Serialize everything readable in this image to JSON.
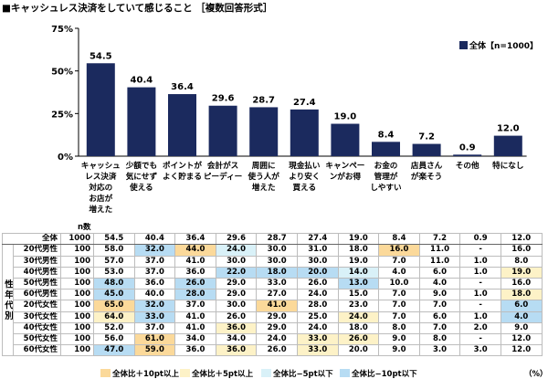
{
  "title": "■キャッシュレス決済をしていて感じること ［複数回答形式］",
  "colors": {
    "bar": "#1b2a5e",
    "up10": "#fbd99a",
    "up5": "#fdf2c7",
    "down5": "#d9f1f8",
    "down10": "#b7dcf3"
  },
  "chart_data": {
    "type": "bar",
    "categories": [
      [
        "キャッシュ",
        "レス決済",
        "対応の",
        "お店が",
        "増えた"
      ],
      [
        "少額でも",
        "気にせず",
        "使える"
      ],
      [
        "ポイントが",
        "よく貯まる"
      ],
      [
        "会計がス",
        "ピーディー"
      ],
      [
        "周囲に",
        "使う人が",
        "増えた"
      ],
      [
        "現金払い",
        "より安く",
        "買える"
      ],
      [
        "キャンペー",
        "ンがお得"
      ],
      [
        "お金の",
        "管理が",
        "しやすい"
      ],
      [
        "店員さん",
        "が楽そう"
      ],
      [
        "その他"
      ],
      [
        "特になし"
      ]
    ],
    "series": [
      {
        "name": "全体【n=1000】",
        "values": [
          54.5,
          40.4,
          36.4,
          29.6,
          28.7,
          27.4,
          19.0,
          8.4,
          7.2,
          0.9,
          12.0
        ]
      }
    ],
    "value_labels": [
      "54.5",
      "40.4",
      "36.4",
      "29.6",
      "28.7",
      "27.4",
      "19.0",
      "8.4",
      "7.2",
      "0.9",
      "12.0"
    ],
    "yticks": [
      "75%",
      "50%",
      "25%",
      "0%"
    ],
    "ylim": [
      0,
      75
    ],
    "legend_position": "top-right"
  },
  "table": {
    "n_header": "n数",
    "group_label": "性年代別",
    "unit": "（%）",
    "rows": [
      {
        "label": "全体",
        "n": "1000",
        "cells": [
          "54.5",
          "40.4",
          "36.4",
          "29.6",
          "28.7",
          "27.4",
          "19.0",
          "8.4",
          "7.2",
          "0.9",
          "12.0"
        ],
        "hl": [
          0,
          0,
          0,
          0,
          0,
          0,
          0,
          0,
          0,
          0,
          0
        ]
      },
      {
        "label": "20代男性",
        "n": "100",
        "cells": [
          "58.0",
          "32.0",
          "44.0",
          "24.0",
          "30.0",
          "31.0",
          "18.0",
          "16.0",
          "11.0",
          "-",
          "16.0"
        ],
        "hl": [
          0,
          -2,
          2,
          -1,
          0,
          0,
          0,
          2,
          0,
          0,
          0
        ]
      },
      {
        "label": "30代男性",
        "n": "100",
        "cells": [
          "57.0",
          "37.0",
          "41.0",
          "30.0",
          "30.0",
          "30.0",
          "19.0",
          "7.0",
          "11.0",
          "1.0",
          "8.0"
        ],
        "hl": [
          0,
          0,
          0,
          0,
          0,
          0,
          0,
          0,
          0,
          0,
          0
        ]
      },
      {
        "label": "40代男性",
        "n": "100",
        "cells": [
          "53.0",
          "37.0",
          "36.0",
          "22.0",
          "18.0",
          "20.0",
          "14.0",
          "4.0",
          "6.0",
          "1.0",
          "19.0"
        ],
        "hl": [
          0,
          0,
          0,
          -2,
          -2,
          -2,
          -1,
          0,
          0,
          0,
          1
        ]
      },
      {
        "label": "50代男性",
        "n": "100",
        "cells": [
          "48.0",
          "36.0",
          "26.0",
          "29.0",
          "33.0",
          "26.0",
          "13.0",
          "10.0",
          "4.0",
          "-",
          "16.0"
        ],
        "hl": [
          -2,
          0,
          -2,
          0,
          0,
          0,
          -2,
          0,
          0,
          0,
          0
        ]
      },
      {
        "label": "60代男性",
        "n": "100",
        "cells": [
          "45.0",
          "40.0",
          "28.0",
          "29.0",
          "27.0",
          "24.0",
          "15.0",
          "7.0",
          "9.0",
          "1.0",
          "18.0"
        ],
        "hl": [
          -2,
          0,
          -2,
          0,
          0,
          0,
          0,
          0,
          0,
          0,
          1
        ]
      },
      {
        "label": "20代女性",
        "n": "100",
        "cells": [
          "65.0",
          "32.0",
          "37.0",
          "30.0",
          "41.0",
          "28.0",
          "23.0",
          "7.0",
          "7.0",
          "-",
          "6.0"
        ],
        "hl": [
          2,
          -2,
          0,
          0,
          2,
          0,
          0,
          0,
          0,
          0,
          -2
        ]
      },
      {
        "label": "30代女性",
        "n": "100",
        "cells": [
          "64.0",
          "33.0",
          "41.0",
          "26.0",
          "29.0",
          "25.0",
          "24.0",
          "7.0",
          "6.0",
          "1.0",
          "4.0"
        ],
        "hl": [
          1,
          -2,
          0,
          0,
          0,
          0,
          1,
          0,
          0,
          0,
          -2
        ]
      },
      {
        "label": "40代女性",
        "n": "100",
        "cells": [
          "52.0",
          "37.0",
          "41.0",
          "36.0",
          "29.0",
          "24.0",
          "18.0",
          "8.0",
          "7.0",
          "2.0",
          "9.0"
        ],
        "hl": [
          0,
          0,
          0,
          1,
          0,
          0,
          0,
          0,
          0,
          0,
          0
        ]
      },
      {
        "label": "50代女性",
        "n": "100",
        "cells": [
          "56.0",
          "61.0",
          "34.0",
          "34.0",
          "24.0",
          "33.0",
          "26.0",
          "9.0",
          "8.0",
          "-",
          "12.0"
        ],
        "hl": [
          0,
          2,
          0,
          0,
          0,
          1,
          1,
          0,
          0,
          0,
          0
        ]
      },
      {
        "label": "60代女性",
        "n": "100",
        "cells": [
          "47.0",
          "59.0",
          "36.0",
          "36.0",
          "26.0",
          "33.0",
          "20.0",
          "9.0",
          "3.0",
          "3.0",
          "12.0"
        ],
        "hl": [
          -2,
          2,
          0,
          1,
          0,
          1,
          0,
          0,
          0,
          0,
          0
        ]
      }
    ]
  },
  "bottom_legend": {
    "up10": "全体比＋10pt以上",
    "up5": "全体比＋5pt以上",
    "down5": "全体比−5pt以下",
    "down10": "全体比−10pt以下"
  }
}
